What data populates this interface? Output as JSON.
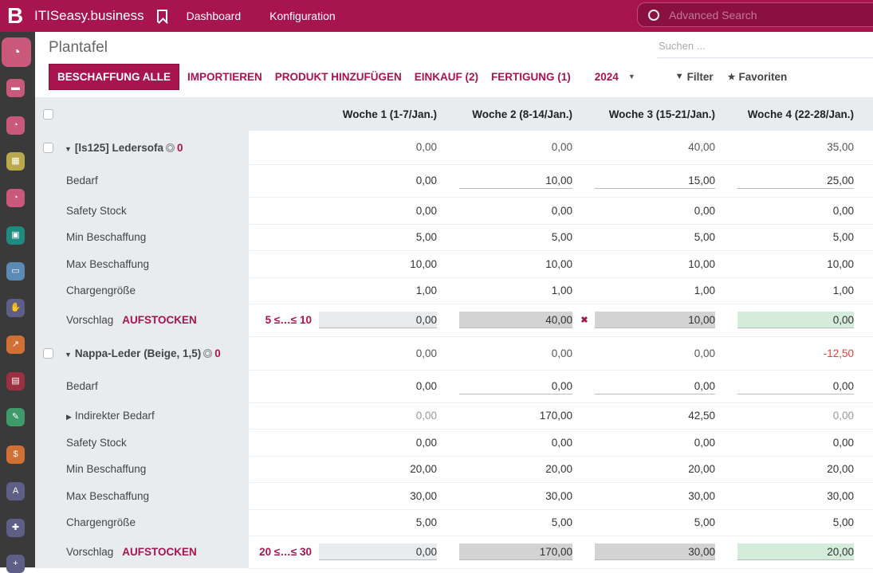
{
  "topbar": {
    "logo": "B",
    "brand": "ITISeasy.business",
    "nav": [
      "Dashboard",
      "Konfiguration"
    ],
    "advanced_search_placeholder": "Advanced Search"
  },
  "sidebar": {
    "icons": [
      {
        "name": "dashboard-icon",
        "color": "#c9587a",
        "glyph": "◔"
      },
      {
        "name": "chat-icon",
        "color": "#c9587a",
        "glyph": "▬"
      },
      {
        "name": "dashboard-icon",
        "color": "#c9587a",
        "glyph": "◔"
      },
      {
        "name": "calendar-icon",
        "color": "#b9a94a",
        "glyph": "▦"
      },
      {
        "name": "dashboard-icon",
        "color": "#c9587a",
        "glyph": "◔"
      },
      {
        "name": "contacts-icon",
        "color": "#1f8a7f",
        "glyph": "▣"
      },
      {
        "name": "card-icon",
        "color": "#5b8ab5",
        "glyph": "▭"
      },
      {
        "name": "handshake-icon",
        "color": "#5e5f87",
        "glyph": "✋"
      },
      {
        "name": "chart-icon",
        "color": "#d07034",
        "glyph": "↗"
      },
      {
        "name": "box-icon",
        "color": "#9a3040",
        "glyph": "▤"
      },
      {
        "name": "wrench-icon",
        "color": "#3f9a6a",
        "glyph": "✎"
      },
      {
        "name": "invoice-icon",
        "color": "#d07034",
        "glyph": "$"
      },
      {
        "name": "tool-icon",
        "color": "#5e5f87",
        "glyph": "A"
      },
      {
        "name": "puzzle-icon",
        "color": "#5e5f87",
        "glyph": "✚"
      },
      {
        "name": "medkit-icon",
        "color": "#5e5f87",
        "glyph": "+"
      }
    ]
  },
  "page": {
    "title": "Plantafel",
    "search_placeholder": "Suchen ...",
    "buttons": [
      "BESCHAFFUNG ALLE",
      "IMPORTIEREN",
      "PRODUKT HINZUFÜGEN",
      "EINKAUF (2)",
      "FERTIGUNG (1)"
    ],
    "year": "2024",
    "filter": "Filter",
    "favorites": "Favoriten"
  },
  "table": {
    "weeks": [
      "Woche 1 (1-7/Jan.)",
      "Woche 2 (8-14/Jan.)",
      "Woche 3 (15-21/Jan.)",
      "Woche 4 (22-28/Jan.)"
    ],
    "products": [
      {
        "name": "[ls125] Ledersofa",
        "count": "0",
        "values": [
          "0,00",
          "0,00",
          "40,00",
          "35,00"
        ],
        "rows": [
          {
            "label": "Bedarf",
            "values": [
              "0,00",
              "10,00",
              "15,00",
              "25,00"
            ]
          },
          {
            "label": "Safety Stock",
            "values": [
              "0,00",
              "0,00",
              "0,00",
              "0,00"
            ]
          },
          {
            "label": "Min Beschaffung",
            "values": [
              "5,00",
              "5,00",
              "5,00",
              "5,00"
            ]
          },
          {
            "label": "Max Beschaffung",
            "values": [
              "10,00",
              "10,00",
              "10,00",
              "10,00"
            ]
          },
          {
            "label": "Chargengröße",
            "values": [
              "1,00",
              "1,00",
              "1,00",
              "1,00"
            ]
          }
        ],
        "suggestion": {
          "label": "Vorschlag",
          "action": "AUFSTOCKEN",
          "range": "5 ≤…≤ 10",
          "values": [
            "0,00",
            "40,00",
            "10,00",
            "0,00"
          ]
        }
      },
      {
        "name": "Nappa-Leder (Beige, 1,5)",
        "count": "0",
        "values": [
          "0,00",
          "0,00",
          "0,00",
          "-12,50"
        ],
        "rows": [
          {
            "label": "Bedarf",
            "values": [
              "0,00",
              "0,00",
              "0,00",
              "0,00"
            ]
          },
          {
            "label": "Indirekter Bedarf",
            "values": [
              "0,00",
              "170,00",
              "42,50",
              "0,00"
            ]
          },
          {
            "label": "Safety Stock",
            "values": [
              "0,00",
              "0,00",
              "0,00",
              "0,00"
            ]
          },
          {
            "label": "Min Beschaffung",
            "values": [
              "20,00",
              "20,00",
              "20,00",
              "20,00"
            ]
          },
          {
            "label": "Max Beschaffung",
            "values": [
              "30,00",
              "30,00",
              "30,00",
              "30,00"
            ]
          },
          {
            "label": "Chargengröße",
            "values": [
              "5,00",
              "5,00",
              "5,00",
              "5,00"
            ]
          }
        ],
        "suggestion": {
          "label": "Vorschlag",
          "action": "AUFSTOCKEN",
          "range": "20 ≤…≤ 30",
          "values": [
            "0,00",
            "170,00",
            "30,00",
            "20,00"
          ]
        }
      }
    ]
  }
}
